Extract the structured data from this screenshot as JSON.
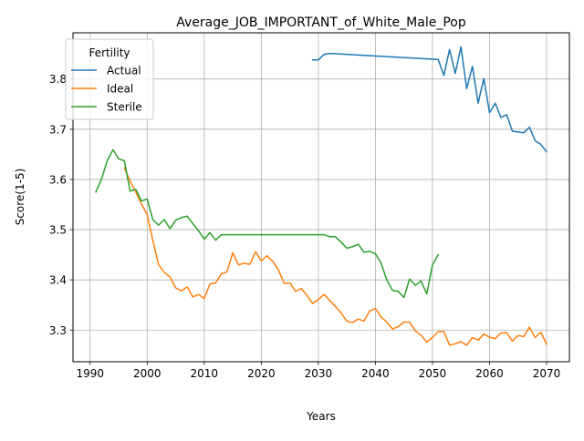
{
  "chart_data": {
    "type": "line",
    "title": "Average_JOB_IMPORTANT_of_White_Male_Pop",
    "xlabel": "Years",
    "ylabel": "Score(1-5)",
    "xlim": [
      1987,
      2074
    ],
    "ylim": [
      3.237,
      3.892
    ],
    "xticks": [
      1990,
      2000,
      2010,
      2020,
      2030,
      2040,
      2050,
      2060,
      2070
    ],
    "yticks": [
      3.3,
      3.4,
      3.5,
      3.6,
      3.7,
      3.8
    ],
    "grid": true,
    "legend": {
      "title": "Fertility",
      "placement": "top-left"
    },
    "series": [
      {
        "name": "Actual",
        "color": "#1f77b4",
        "x": [
          2029,
          2030,
          2031,
          2032,
          2051,
          2052,
          2053,
          2054,
          2055,
          2056,
          2057,
          2058,
          2059,
          2060,
          2061,
          2062,
          2063,
          2064,
          2066,
          2067,
          2068,
          2069,
          2070
        ],
        "y": [
          3.838,
          3.838,
          3.849,
          3.851,
          3.839,
          3.807,
          3.859,
          3.811,
          3.864,
          3.781,
          3.825,
          3.752,
          3.801,
          3.733,
          3.752,
          3.723,
          3.729,
          3.696,
          3.693,
          3.704,
          3.677,
          3.67,
          3.655
        ]
      },
      {
        "name": "Ideal",
        "color": "#ff7f0e",
        "x": [
          1996,
          1997,
          1998,
          1999,
          2000,
          2001,
          2002,
          2003,
          2004,
          2005,
          2006,
          2007,
          2008,
          2009,
          2010,
          2011,
          2012,
          2013,
          2014,
          2015,
          2016,
          2017,
          2018,
          2019,
          2020,
          2021,
          2022,
          2023,
          2024,
          2025,
          2026,
          2027,
          2028,
          2029,
          2030,
          2031,
          2032,
          2033,
          2034,
          2035,
          2036,
          2037,
          2038,
          2039,
          2040,
          2041,
          2042,
          2043,
          2044,
          2045,
          2046,
          2047,
          2048,
          2049,
          2050,
          2051,
          2052,
          2053,
          2054,
          2055,
          2056,
          2057,
          2058,
          2059,
          2060,
          2061,
          2062,
          2063,
          2064,
          2065,
          2066,
          2067,
          2068,
          2069,
          2070
        ],
        "y": [
          3.623,
          3.597,
          3.575,
          3.551,
          3.53,
          3.478,
          3.43,
          3.415,
          3.406,
          3.384,
          3.378,
          3.386,
          3.366,
          3.371,
          3.363,
          3.392,
          3.394,
          3.412,
          3.416,
          3.454,
          3.43,
          3.433,
          3.431,
          3.456,
          3.438,
          3.448,
          3.437,
          3.42,
          3.393,
          3.394,
          3.377,
          3.383,
          3.369,
          3.353,
          3.361,
          3.371,
          3.359,
          3.347,
          3.334,
          3.318,
          3.315,
          3.322,
          3.318,
          3.338,
          3.343,
          3.326,
          3.316,
          3.302,
          3.307,
          3.316,
          3.316,
          3.298,
          3.29,
          3.276,
          3.285,
          3.297,
          3.297,
          3.27,
          3.273,
          3.277,
          3.27,
          3.285,
          3.28,
          3.292,
          3.286,
          3.283,
          3.294,
          3.295,
          3.278,
          3.289,
          3.287,
          3.306,
          3.285,
          3.296,
          3.272
        ]
      },
      {
        "name": "Sterile",
        "color": "#2ca02c",
        "x": [
          1991,
          1992,
          1993,
          1994,
          1995,
          1996,
          1997,
          1998,
          1999,
          2000,
          2001,
          2002,
          2003,
          2004,
          2005,
          2006,
          2007,
          2008,
          2009,
          2010,
          2011,
          2012,
          2013,
          2014,
          2015,
          2016,
          2017,
          2018,
          2019,
          2020,
          2021,
          2022,
          2023,
          2024,
          2025,
          2026,
          2027,
          2028,
          2029,
          2030,
          2031,
          2032,
          2033,
          2034,
          2035,
          2036,
          2037,
          2038,
          2039,
          2040,
          2041,
          2042,
          2043,
          2044,
          2045,
          2046,
          2047,
          2048,
          2049,
          2050,
          2051
        ],
        "y": [
          3.575,
          3.601,
          3.637,
          3.659,
          3.641,
          3.637,
          3.577,
          3.58,
          3.557,
          3.561,
          3.52,
          3.509,
          3.52,
          3.502,
          3.519,
          3.524,
          3.527,
          3.512,
          3.498,
          3.481,
          3.494,
          3.479,
          3.49,
          3.49,
          3.49,
          3.49,
          3.49,
          3.49,
          3.49,
          3.49,
          3.49,
          3.49,
          3.49,
          3.49,
          3.49,
          3.49,
          3.49,
          3.49,
          3.49,
          3.49,
          3.49,
          3.486,
          3.486,
          3.475,
          3.463,
          3.466,
          3.471,
          3.455,
          3.457,
          3.452,
          3.433,
          3.4,
          3.379,
          3.377,
          3.365,
          3.402,
          3.389,
          3.398,
          3.372,
          3.43,
          3.45
        ]
      }
    ]
  }
}
